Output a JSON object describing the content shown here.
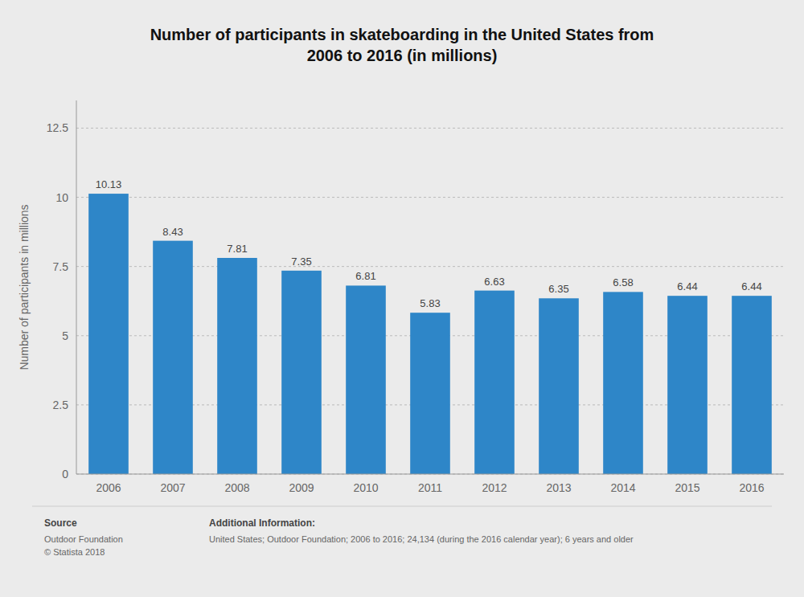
{
  "chart_data": {
    "type": "bar",
    "title": "Number of participants in skateboarding in the United States from\n2006 to 2016 (in millions)",
    "categories": [
      "2006",
      "2007",
      "2008",
      "2009",
      "2010",
      "2011",
      "2012",
      "2013",
      "2014",
      "2015",
      "2016"
    ],
    "values": [
      10.13,
      8.43,
      7.81,
      7.35,
      6.81,
      5.83,
      6.63,
      6.35,
      6.58,
      6.44,
      6.44
    ],
    "color": "#2E86C8",
    "ylabel": "Number of participants in millions",
    "ylim": [
      0,
      13.5
    ],
    "yticks": [
      0,
      2.5,
      5,
      7.5,
      10,
      12.5
    ],
    "grid": true,
    "data_labels": true,
    "annotations": [
      "Source",
      "Outdoor Foundation\n© Statista 2018",
      "Additional Information:",
      "United States; Outdoor Foundation; 2006 to 2016; 24,134 (during the 2016 calendar year); 6 years and older"
    ]
  }
}
